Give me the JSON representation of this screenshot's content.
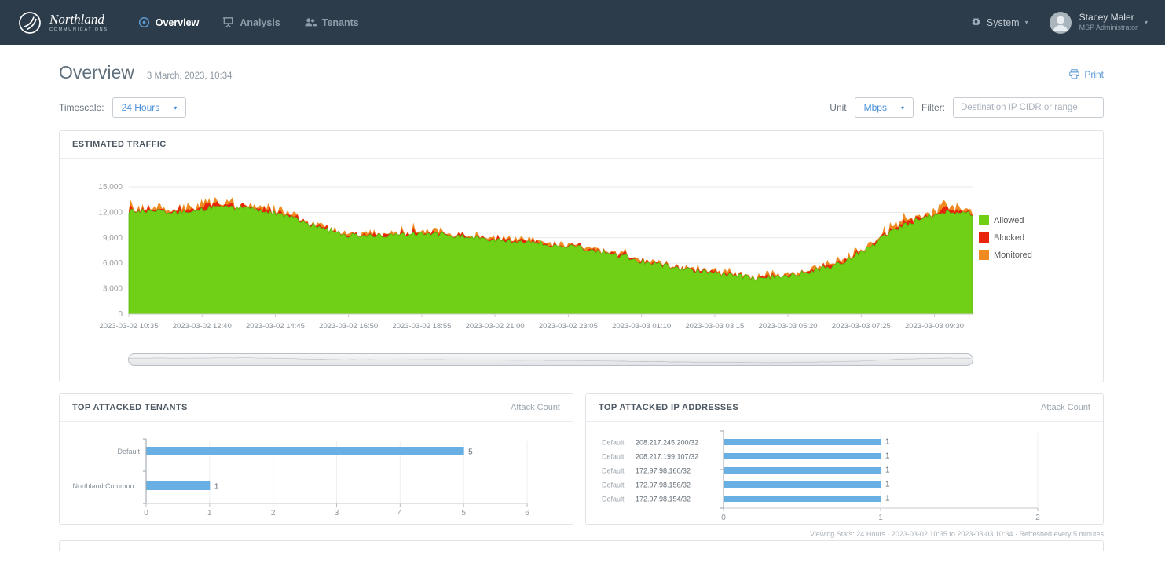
{
  "nav": {
    "brand": {
      "name": "Northland",
      "sub": "COMMUNICATIONS"
    },
    "items": [
      {
        "label": "Overview"
      },
      {
        "label": "Analysis"
      },
      {
        "label": "Tenants"
      }
    ],
    "system_label": "System",
    "user": {
      "name": "Stacey Maler",
      "role": "MSP Administrator"
    }
  },
  "header": {
    "title": "Overview",
    "timestamp": "3 March, 2023, 10:34",
    "print_label": "Print"
  },
  "controls": {
    "timescale_label": "Timescale:",
    "timescale_value": "24 Hours",
    "unit_label": "Unit",
    "unit_value": "Mbps",
    "filter_label": "Filter:",
    "filter_placeholder": "Destination IP CIDR or range"
  },
  "footer_note": "Viewing Stats: 24 Hours · 2023-03-02 10:35 to 2023-03-03 10:34 · Refreshed every 5 minutes",
  "chart_data": [
    {
      "type": "area",
      "title": "ESTIMATED TRAFFIC",
      "unit": "Mbps",
      "ylim": [
        0,
        15000
      ],
      "yticks": [
        "0",
        "3,000",
        "6,000",
        "9,000",
        "12,000",
        "15,000"
      ],
      "x_labels": [
        "2023-03-02 10:35",
        "2023-03-02 12:40",
        "2023-03-02 14:45",
        "2023-03-02 16:50",
        "2023-03-02 18:55",
        "2023-03-02 21:00",
        "2023-03-02 23:05",
        "2023-03-03 01:10",
        "2023-03-03 03:15",
        "2023-03-03 05:20",
        "2023-03-03 07:25",
        "2023-03-03 09:30"
      ],
      "grid": true,
      "legend_position": "right",
      "series": [
        {
          "name": "Allowed",
          "color": "#6fd016",
          "values": [
            12200,
            12100,
            11900,
            12600,
            12500,
            12200,
            11300,
            10200,
            9300,
            9200,
            9500,
            9400,
            9200,
            8900,
            8600,
            8400,
            8000,
            7600,
            6900,
            6100,
            5500,
            5000,
            4600,
            4200,
            4400,
            5000,
            5800,
            7400,
            9600,
            11200,
            12100,
            11800
          ]
        },
        {
          "name": "Blocked",
          "color": "#e8240d",
          "values": [
            500,
            450,
            500,
            550,
            500,
            450,
            400,
            450,
            400,
            350,
            350,
            400,
            350,
            350,
            400,
            350,
            300,
            300,
            350,
            300,
            300,
            250,
            250,
            300,
            300,
            350,
            400,
            450,
            500,
            550,
            600,
            500
          ]
        },
        {
          "name": "Monitored",
          "color": "#ee8a1f",
          "values": [
            600,
            500,
            550,
            600,
            550,
            500,
            450,
            400,
            400,
            350,
            400,
            450,
            400,
            350,
            400,
            350,
            350,
            300,
            350,
            300,
            300,
            250,
            300,
            350,
            300,
            400,
            450,
            500,
            550,
            600,
            650,
            550
          ]
        }
      ]
    },
    {
      "type": "bar",
      "orientation": "horizontal",
      "title": "TOP ATTACKED TENANTS",
      "value_label": "Attack Count",
      "categories": [
        "Default",
        "Northland Commun..."
      ],
      "values": [
        5,
        1
      ],
      "xlim": [
        0,
        6
      ],
      "xticks": [
        0,
        1,
        2,
        3,
        4,
        5,
        6
      ],
      "bar_color": "#68b0e3"
    },
    {
      "type": "bar",
      "orientation": "horizontal",
      "title": "TOP ATTACKED IP ADDRESSES",
      "value_label": "Attack Count",
      "rows": [
        {
          "tenant": "Default",
          "ip": "208.217.245.200/32",
          "value": 1
        },
        {
          "tenant": "Default",
          "ip": "208.217.199.107/32",
          "value": 1
        },
        {
          "tenant": "Default",
          "ip": "172.97.98.160/32",
          "value": 1
        },
        {
          "tenant": "Default",
          "ip": "172.97.98.156/32",
          "value": 1
        },
        {
          "tenant": "Default",
          "ip": "172.97.98.154/32",
          "value": 1
        }
      ],
      "xlim": [
        0,
        2
      ],
      "xticks": [
        0,
        1,
        2
      ],
      "bar_color": "#68b0e3"
    }
  ]
}
